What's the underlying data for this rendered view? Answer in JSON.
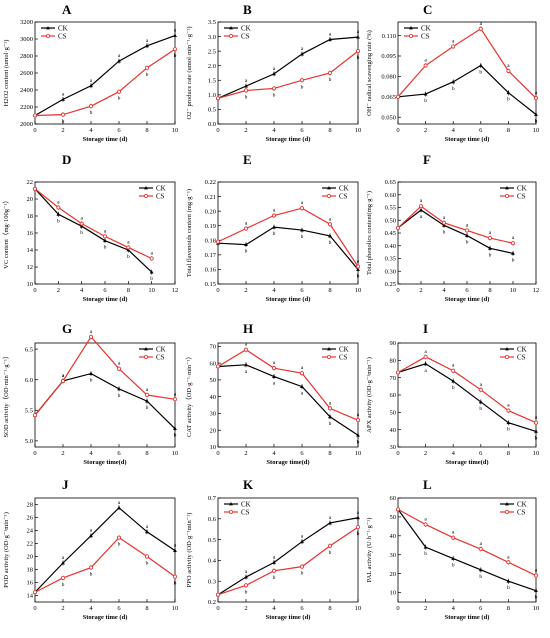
{
  "colors": {
    "CK": "#000000",
    "CS": "#e8322e"
  },
  "chart_data": [
    {
      "type": "line",
      "panel": "A",
      "xlabel": "Storage time (d)",
      "ylabel": "H2O2 content (umol·g⁻¹)",
      "x": [
        0,
        2,
        4,
        6,
        8,
        10
      ],
      "xlim": [
        0,
        10
      ],
      "xticks": [
        0,
        2,
        4,
        6,
        8,
        10
      ],
      "ylim": [
        2000,
        3200
      ],
      "yticks": [
        2000,
        2200,
        2400,
        2600,
        2800,
        3000,
        3200
      ],
      "legend": "top-left",
      "series": [
        {
          "name": "CK",
          "values": [
            2100,
            2290,
            2450,
            2740,
            2920,
            3040
          ],
          "sig": [
            "",
            "a",
            "a",
            "a",
            "a",
            "a"
          ]
        },
        {
          "name": "CS",
          "values": [
            2100,
            2110,
            2210,
            2380,
            2660,
            2880
          ],
          "sig": [
            "",
            "b",
            "b",
            "b",
            "b",
            "b"
          ]
        }
      ]
    },
    {
      "type": "line",
      "panel": "B",
      "xlabel": "Storage time (d)",
      "ylabel": "O2⁻ produce rate (umol·min⁻¹·g⁻¹)",
      "x": [
        0,
        2,
        4,
        6,
        8,
        10
      ],
      "xlim": [
        0,
        10
      ],
      "xticks": [
        0,
        2,
        4,
        6,
        8,
        10
      ],
      "ylim": [
        0,
        3.5
      ],
      "yticks": [
        0.0,
        0.5,
        1.0,
        1.5,
        2.0,
        2.5,
        3.0,
        3.5
      ],
      "legend": "top-left",
      "series": [
        {
          "name": "CK",
          "values": [
            0.88,
            1.3,
            1.72,
            2.4,
            2.9,
            2.98
          ],
          "sig": [
            "",
            "a",
            "a",
            "a",
            "a",
            "a"
          ]
        },
        {
          "name": "CS",
          "values": [
            0.88,
            1.15,
            1.22,
            1.5,
            1.75,
            2.5
          ],
          "sig": [
            "",
            "b",
            "b",
            "b",
            "b",
            "b"
          ]
        }
      ]
    },
    {
      "type": "line",
      "panel": "C",
      "xlabel": "Storage time (d)",
      "ylabel": "OH⁻ radical scavenging rate (%)",
      "x": [
        0,
        2,
        4,
        6,
        8,
        10
      ],
      "xlim": [
        0,
        10
      ],
      "xticks": [
        0,
        2,
        4,
        6,
        8,
        10
      ],
      "ylim": [
        0.045,
        0.12
      ],
      "yticks": [
        0.05,
        0.065,
        0.08,
        0.095,
        0.11
      ],
      "legend": "top-left",
      "series": [
        {
          "name": "CK",
          "values": [
            0.065,
            0.067,
            0.076,
            0.088,
            0.068,
            0.052
          ],
          "sig": [
            "",
            "b",
            "b",
            "b",
            "b",
            "b"
          ]
        },
        {
          "name": "CS",
          "values": [
            0.065,
            0.088,
            0.102,
            0.115,
            0.084,
            0.064
          ],
          "sig": [
            "",
            "a",
            "a",
            "a",
            "a",
            "a"
          ]
        }
      ]
    },
    {
      "type": "line",
      "panel": "D",
      "xlabel": "Storage time (d)",
      "ylabel": "VC content（mg·100g⁻¹）",
      "x": [
        0,
        2,
        4,
        6,
        8,
        10
      ],
      "xlim": [
        0,
        12
      ],
      "xticks": [
        0,
        2,
        4,
        6,
        8,
        10,
        12
      ],
      "ylim": [
        10,
        22
      ],
      "yticks": [
        10,
        12,
        14,
        16,
        18,
        20,
        22
      ],
      "legend": "top-right",
      "series": [
        {
          "name": "CK",
          "values": [
            21.2,
            18.2,
            16.8,
            15.1,
            14.0,
            11.4
          ],
          "sig": [
            "",
            "b",
            "b",
            "b",
            "b",
            "b"
          ]
        },
        {
          "name": "CS",
          "values": [
            21.2,
            19.0,
            17.1,
            15.6,
            14.3,
            13.0
          ],
          "sig": [
            "",
            "a",
            "a",
            "a",
            "a",
            "a"
          ]
        }
      ]
    },
    {
      "type": "line",
      "panel": "E",
      "xlabel": "Storage time (d)",
      "ylabel": "Total flavonoids content (mg·g⁻¹)",
      "x": [
        0,
        2,
        4,
        6,
        8,
        10
      ],
      "xlim": [
        0,
        10
      ],
      "xticks": [
        0,
        2,
        4,
        6,
        8,
        10
      ],
      "ylim": [
        0.15,
        0.22
      ],
      "yticks": [
        0.15,
        0.16,
        0.17,
        0.18,
        0.19,
        0.2,
        0.21,
        0.22
      ],
      "legend": "top-right",
      "series": [
        {
          "name": "CK",
          "values": [
            0.178,
            0.177,
            0.189,
            0.187,
            0.183,
            0.16
          ],
          "sig": [
            "",
            "b",
            "b",
            "b",
            "b",
            "b"
          ]
        },
        {
          "name": "CS",
          "values": [
            0.179,
            0.188,
            0.197,
            0.202,
            0.191,
            0.162
          ],
          "sig": [
            "",
            "a",
            "a",
            "a",
            "a",
            "a"
          ]
        }
      ]
    },
    {
      "type": "line",
      "panel": "F",
      "xlabel": "Storage time (d)",
      "ylabel": "Total phenolics content(mg·g⁻¹)",
      "x": [
        0,
        2,
        4,
        6,
        8,
        10
      ],
      "xlim": [
        0,
        12
      ],
      "xticks": [
        0,
        2,
        4,
        6,
        8,
        10,
        12
      ],
      "ylim": [
        0.25,
        0.65
      ],
      "yticks": [
        0.25,
        0.3,
        0.35,
        0.4,
        0.45,
        0.5,
        0.55,
        0.6,
        0.65
      ],
      "legend": "top-right",
      "series": [
        {
          "name": "CK",
          "values": [
            0.47,
            0.54,
            0.48,
            0.44,
            0.39,
            0.37
          ],
          "sig": [
            "",
            "a",
            "b",
            "b",
            "b",
            "b"
          ]
        },
        {
          "name": "CS",
          "values": [
            0.47,
            0.555,
            0.49,
            0.46,
            0.43,
            0.41
          ],
          "sig": [
            "",
            "a",
            "a",
            "a",
            "a",
            "a"
          ]
        }
      ]
    },
    {
      "type": "line",
      "panel": "G",
      "xlabel": "Storage time(d)",
      "ylabel": "SOD activity（OD·min⁻¹·g⁻¹）",
      "x": [
        0,
        2,
        4,
        6,
        8,
        10
      ],
      "xlim": [
        0,
        10
      ],
      "xticks": [
        0,
        2,
        4,
        6,
        8,
        10
      ],
      "ylim": [
        4.9,
        6.6
      ],
      "yticks": [
        5.0,
        5.5,
        6.0,
        6.5
      ],
      "legend": "top-right",
      "series": [
        {
          "name": "CK",
          "values": [
            5.42,
            5.98,
            6.1,
            5.85,
            5.65,
            5.2
          ],
          "sig": [
            "",
            "a",
            "b",
            "b",
            "b",
            "b"
          ]
        },
        {
          "name": "CS",
          "values": [
            5.42,
            5.98,
            6.7,
            6.18,
            5.75,
            5.68
          ],
          "sig": [
            "",
            "a",
            "a",
            "a",
            "a",
            "a"
          ]
        }
      ]
    },
    {
      "type": "line",
      "panel": "H",
      "xlabel": "Storage time(d)",
      "ylabel": "CAT activity（OD·g⁻¹·min⁻¹）",
      "x": [
        0,
        2,
        4,
        6,
        8,
        10
      ],
      "xlim": [
        0,
        10
      ],
      "xticks": [
        0,
        2,
        4,
        6,
        8,
        10
      ],
      "ylim": [
        10,
        72
      ],
      "yticks": [
        10,
        20,
        30,
        40,
        50,
        60,
        70
      ],
      "legend": "top-right",
      "series": [
        {
          "name": "CK",
          "values": [
            58,
            59,
            52,
            46,
            28,
            17
          ],
          "sig": [
            "",
            "a",
            "a",
            "a",
            "b",
            "b"
          ]
        },
        {
          "name": "CS",
          "values": [
            58,
            68,
            57,
            54,
            33,
            26
          ],
          "sig": [
            "",
            "a",
            "a",
            "a",
            "a",
            "a"
          ]
        }
      ]
    },
    {
      "type": "line",
      "panel": "I",
      "xlabel": "Storage time(d)",
      "ylabel": "APX activity (OD·g⁻¹min⁻¹)",
      "x": [
        0,
        2,
        4,
        6,
        8,
        10
      ],
      "xlim": [
        0,
        10
      ],
      "xticks": [
        0,
        2,
        4,
        6,
        8,
        10
      ],
      "ylim": [
        30,
        90
      ],
      "yticks": [
        30,
        40,
        50,
        60,
        70,
        80,
        90
      ],
      "legend": "top-right",
      "series": [
        {
          "name": "CK",
          "values": [
            73,
            78,
            68,
            56,
            44,
            39
          ],
          "sig": [
            "",
            "a",
            "b",
            "b",
            "b",
            "b"
          ]
        },
        {
          "name": "CS",
          "values": [
            73,
            82,
            74,
            63,
            51,
            44
          ],
          "sig": [
            "",
            "a",
            "a",
            "a",
            "a",
            "a"
          ]
        }
      ]
    },
    {
      "type": "line",
      "panel": "J",
      "xlabel": "Storage time (d)",
      "ylabel": "POD activity (OD·g⁻¹min⁻¹)",
      "x": [
        0,
        2,
        4,
        6,
        8,
        10
      ],
      "xlim": [
        0,
        10
      ],
      "xticks": [
        0,
        2,
        4,
        6,
        8,
        10
      ],
      "ylim": [
        13,
        29
      ],
      "yticks": [
        14,
        16,
        18,
        20,
        22,
        24,
        26,
        28
      ],
      "legend": "none",
      "series": [
        {
          "name": "CK",
          "values": [
            14.5,
            19.0,
            23.2,
            27.5,
            23.8,
            20.9
          ],
          "sig": [
            "",
            "a",
            "a",
            "a",
            "a",
            "a"
          ]
        },
        {
          "name": "CS",
          "values": [
            14.5,
            16.7,
            18.3,
            22.9,
            20.0,
            16.9
          ],
          "sig": [
            "",
            "b",
            "b",
            "b",
            "b",
            "b"
          ]
        }
      ]
    },
    {
      "type": "line",
      "panel": "K",
      "xlabel": "Storage time (d)",
      "ylabel": "PPO activity (OD·g⁻¹min⁻¹)",
      "x": [
        0,
        2,
        4,
        6,
        8,
        10
      ],
      "xlim": [
        0,
        10
      ],
      "xticks": [
        0,
        2,
        4,
        6,
        8,
        10
      ],
      "ylim": [
        0.2,
        0.7
      ],
      "yticks": [
        0.2,
        0.3,
        0.4,
        0.5,
        0.6,
        0.7
      ],
      "legend": "top-left",
      "series": [
        {
          "name": "CK",
          "values": [
            0.235,
            0.32,
            0.39,
            0.49,
            0.58,
            0.605
          ],
          "sig": [
            "",
            "a",
            "a",
            "a",
            "a",
            "a"
          ]
        },
        {
          "name": "CS",
          "values": [
            0.235,
            0.28,
            0.35,
            0.37,
            0.47,
            0.56
          ],
          "sig": [
            "",
            "b",
            "b",
            "b",
            "b",
            "b"
          ]
        }
      ]
    },
    {
      "type": "line",
      "panel": "L",
      "xlabel": "Storage time (d)",
      "ylabel": "PAL activity (U·h⁻¹·g⁻¹)",
      "x": [
        0,
        2,
        4,
        6,
        8,
        10
      ],
      "xlim": [
        0,
        10
      ],
      "xticks": [
        0,
        2,
        4,
        6,
        8,
        10
      ],
      "ylim": [
        5,
        60
      ],
      "yticks": [
        10,
        20,
        30,
        40,
        50,
        60
      ],
      "legend": "top-right",
      "series": [
        {
          "name": "CK",
          "values": [
            54,
            34,
            28,
            22,
            16,
            11
          ],
          "sig": [
            "",
            "b",
            "b",
            "b",
            "b",
            "b"
          ]
        },
        {
          "name": "CS",
          "values": [
            54,
            46,
            39,
            33,
            26,
            19
          ],
          "sig": [
            "",
            "a",
            "a",
            "a",
            "a",
            "a"
          ]
        }
      ]
    }
  ]
}
